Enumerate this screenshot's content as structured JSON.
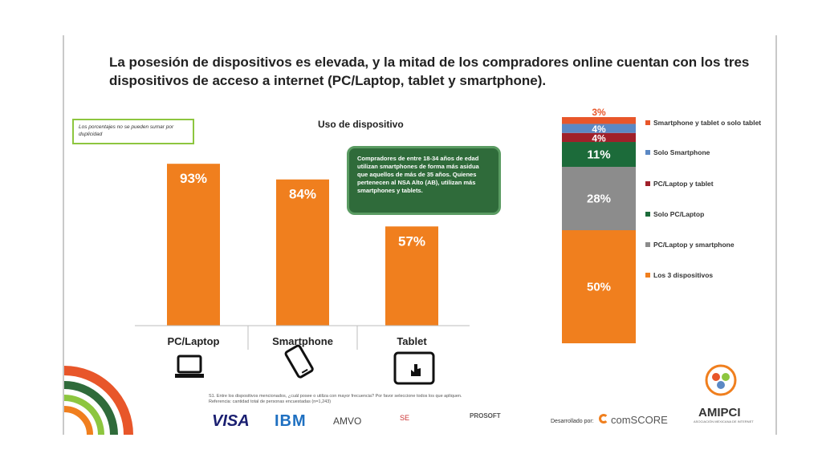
{
  "title": "La posesión de dispositivos es elevada, y la mitad de los compradores online cuentan con los tres dispositivos de acceso a internet (PC/Laptop, tablet y smartphone).",
  "note": "Los porcentajes no se pueden sumar por duplicidad",
  "callout": "Compradores de entre 18-34 años de edad utilizan smartphones de forma más asidua que aquellos de más de 35 años. Quienes pertenecen al NSA Alto (AB), utilizan más smartphones y tablets.",
  "footnote": "S1. Entre los dispositivos mencionados, ¿cuál posee o utiliza con mayor frecuencia? Por favor seleccione todos los que apliquen. Referencia: cantidad total de personas encuestadas (n=1,243)",
  "icons": [
    "laptop-icon",
    "smartphone-icon",
    "tablet-icon"
  ],
  "logos": {
    "visa": "VISA",
    "ibm": "IBM",
    "amvo": "AMVO",
    "se": "SE",
    "prosoft": "PROSOFT",
    "dev_label": "Desarrollado por:",
    "comscore": "comSCORE",
    "amipci": "AMIPCI",
    "amipci_sub": "ASOCIACIÓN MEXICANA DE INTERNET"
  },
  "chart_data": [
    {
      "type": "bar",
      "title": "Uso de dispositivo",
      "categories": [
        "PC/Laptop",
        "Smartphone",
        "Tablet"
      ],
      "values": [
        93,
        84,
        57
      ],
      "value_labels": [
        "93%",
        "84%",
        "57%"
      ],
      "ylim": [
        0,
        100
      ],
      "color": "#f07f1e"
    },
    {
      "type": "bar",
      "stacked": true,
      "series": [
        {
          "name": "Los 3 dispositivos",
          "value": 50,
          "label": "50%",
          "color": "#f07f1e"
        },
        {
          "name": "PC/Laptop y smartphone",
          "value": 28,
          "label": "28%",
          "color": "#8c8c8c"
        },
        {
          "name": "Solo PC/Laptop",
          "value": 11,
          "label": "11%",
          "color": "#1c6b3a"
        },
        {
          "name": "PC/Laptop y tablet",
          "value": 4,
          "label": "4%",
          "color": "#a0202a"
        },
        {
          "name": "Solo Smartphone",
          "value": 4,
          "label": "4%",
          "color": "#5b88c4"
        },
        {
          "name": "Smartphone y tablet o solo tablet",
          "value": 3,
          "label": "3%",
          "color": "#e8562a"
        }
      ],
      "legend": "right"
    }
  ]
}
